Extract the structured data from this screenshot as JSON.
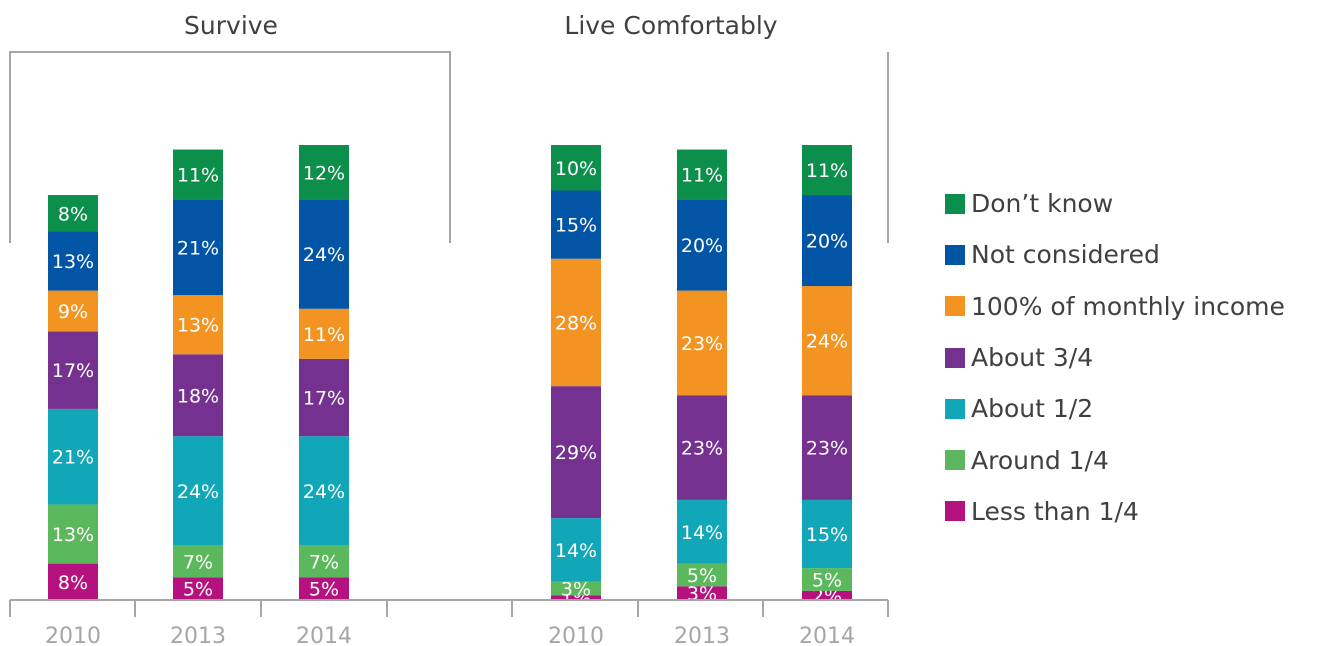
{
  "chart_data": {
    "type": "bar",
    "stacked": true,
    "panels": [
      {
        "title": "Survive",
        "categories": [
          "2010",
          "2013",
          "2014"
        ],
        "series": [
          {
            "name": "Less than 1/4",
            "values": [
              8,
              5,
              5
            ]
          },
          {
            "name": "Around 1/4",
            "values": [
              13,
              7,
              7
            ]
          },
          {
            "name": "About 1/2",
            "values": [
              21,
              24,
              24
            ]
          },
          {
            "name": "About 3/4",
            "values": [
              17,
              18,
              17
            ]
          },
          {
            "name": "100% of monthly income",
            "values": [
              9,
              13,
              11
            ]
          },
          {
            "name": "Not considered",
            "values": [
              13,
              21,
              24
            ]
          },
          {
            "name": "Don’t know",
            "values": [
              8,
              11,
              12
            ]
          }
        ]
      },
      {
        "title": "Live Comfortably",
        "categories": [
          "2010",
          "2013",
          "2014"
        ],
        "series": [
          {
            "name": "Less than 1/4",
            "values": [
              1,
              3,
              2
            ]
          },
          {
            "name": "Around 1/4",
            "values": [
              3,
              5,
              5
            ]
          },
          {
            "name": "About 1/2",
            "values": [
              14,
              14,
              15
            ]
          },
          {
            "name": "About 3/4",
            "values": [
              29,
              23,
              23
            ]
          },
          {
            "name": "100% of monthly income",
            "values": [
              28,
              23,
              24
            ]
          },
          {
            "name": "Not considered",
            "values": [
              15,
              20,
              20
            ]
          },
          {
            "name": "Don’t know",
            "values": [
              10,
              11,
              11
            ]
          }
        ]
      }
    ],
    "colors": [
      "#b5127f",
      "#5cb85c",
      "#11a7b8",
      "#74318f",
      "#f39422",
      "#0255a4",
      "#0c8f4b"
    ],
    "legend_position": "right",
    "legend": [
      {
        "label": "Don’t know",
        "color": "#0c8f4b"
      },
      {
        "label": "Not considered",
        "color": "#0255a4"
      },
      {
        "label": "100% of monthly income",
        "color": "#f39422"
      },
      {
        "label": "About 3/4",
        "color": "#74318f"
      },
      {
        "label": "About 1/2",
        "color": "#11a7b8"
      },
      {
        "label": "Around 1/4",
        "color": "#5cb85c"
      },
      {
        "label": "Less than 1/4",
        "color": "#b5127f"
      }
    ],
    "grid": false
  }
}
